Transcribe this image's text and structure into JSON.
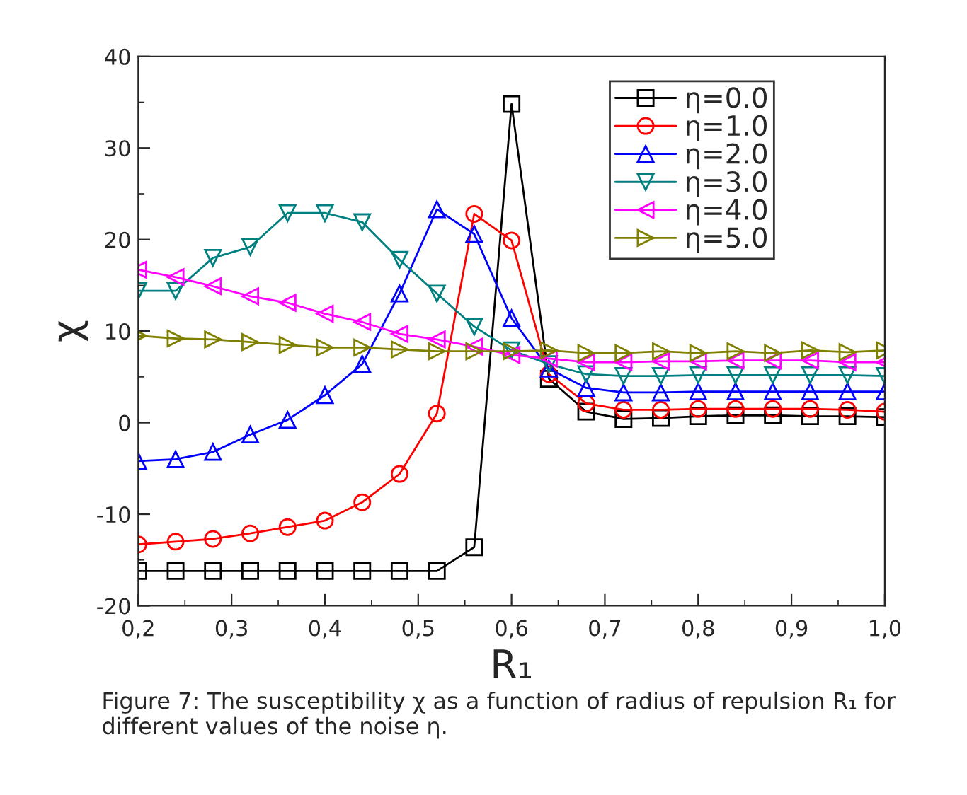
{
  "chart_data": {
    "type": "line",
    "xlabel": "R₁",
    "ylabel": "χ",
    "x": [
      0.2,
      0.24,
      0.28,
      0.32,
      0.36,
      0.4,
      0.44,
      0.48,
      0.52,
      0.56,
      0.6,
      0.64,
      0.68,
      0.72,
      0.76,
      0.8,
      0.84,
      0.88,
      0.92,
      0.96,
      1.0
    ],
    "series": [
      {
        "name": "η=0.0",
        "color": "#000000",
        "marker": "square",
        "values": [
          -16.2,
          -16.2,
          -16.2,
          -16.2,
          -16.2,
          -16.2,
          -16.2,
          -16.2,
          -16.2,
          -13.6,
          34.8,
          4.8,
          1.2,
          0.4,
          0.5,
          0.7,
          0.8,
          0.8,
          0.7,
          0.7,
          0.6
        ]
      },
      {
        "name": "η=1.0",
        "color": "#ff0000",
        "marker": "circle",
        "values": [
          -13.3,
          -13.0,
          -12.7,
          -12.1,
          -11.4,
          -10.7,
          -8.7,
          -5.6,
          1.0,
          22.8,
          19.9,
          5.3,
          2.1,
          1.4,
          1.4,
          1.5,
          1.5,
          1.5,
          1.5,
          1.4,
          1.2
        ]
      },
      {
        "name": "η=2.0",
        "color": "#0000ff",
        "marker": "triangle",
        "values": [
          -4.2,
          -4.0,
          -3.2,
          -1.3,
          0.3,
          3.0,
          6.4,
          14.1,
          23.3,
          20.6,
          11.4,
          5.9,
          3.8,
          3.3,
          3.3,
          3.4,
          3.4,
          3.4,
          3.4,
          3.4,
          3.4
        ]
      },
      {
        "name": "η=3.0",
        "color": "#008080",
        "marker": "triangle_down",
        "values": [
          14.4,
          14.4,
          18.0,
          19.2,
          22.9,
          22.9,
          21.9,
          17.8,
          14.1,
          10.5,
          7.9,
          6.4,
          5.3,
          5.1,
          5.1,
          5.2,
          5.2,
          5.2,
          5.2,
          5.2,
          5.1
        ]
      },
      {
        "name": "η=4.0",
        "color": "#ff00ff",
        "marker": "triangle_left",
        "values": [
          16.7,
          15.9,
          14.9,
          13.8,
          13.1,
          11.9,
          11.0,
          9.7,
          9.1,
          8.3,
          7.4,
          7.0,
          6.6,
          6.6,
          6.7,
          6.7,
          6.8,
          6.8,
          6.8,
          6.6,
          6.6
        ]
      },
      {
        "name": "η=5.0",
        "color": "#808000",
        "marker": "triangle_right",
        "values": [
          9.5,
          9.2,
          9.1,
          8.8,
          8.5,
          8.2,
          8.2,
          8.0,
          7.8,
          7.8,
          7.8,
          7.9,
          7.6,
          7.6,
          7.8,
          7.6,
          7.8,
          7.6,
          7.9,
          7.7,
          7.9
        ]
      }
    ],
    "xlim": [
      0.2,
      1.0
    ],
    "xticks": [
      {
        "value": 0.2,
        "label": "0,2"
      },
      {
        "value": 0.3,
        "label": "0,3"
      },
      {
        "value": 0.4,
        "label": "0,4"
      },
      {
        "value": 0.5,
        "label": "0,5"
      },
      {
        "value": 0.6,
        "label": "0,6"
      },
      {
        "value": 0.7,
        "label": "0,7"
      },
      {
        "value": 0.8,
        "label": "0,8"
      },
      {
        "value": 0.9,
        "label": "0,9"
      },
      {
        "value": 1.0,
        "label": "1,0"
      }
    ],
    "ylim": [
      -20,
      40
    ],
    "yticks": [
      -20,
      -10,
      0,
      10,
      20,
      30,
      40
    ],
    "grid": false,
    "legend": "top right",
    "line_style": "solid",
    "annotations": [
      "Figure 7: The susceptibility χ as a function of radius of repulsion R₁ for different values of the noise η."
    ]
  }
}
